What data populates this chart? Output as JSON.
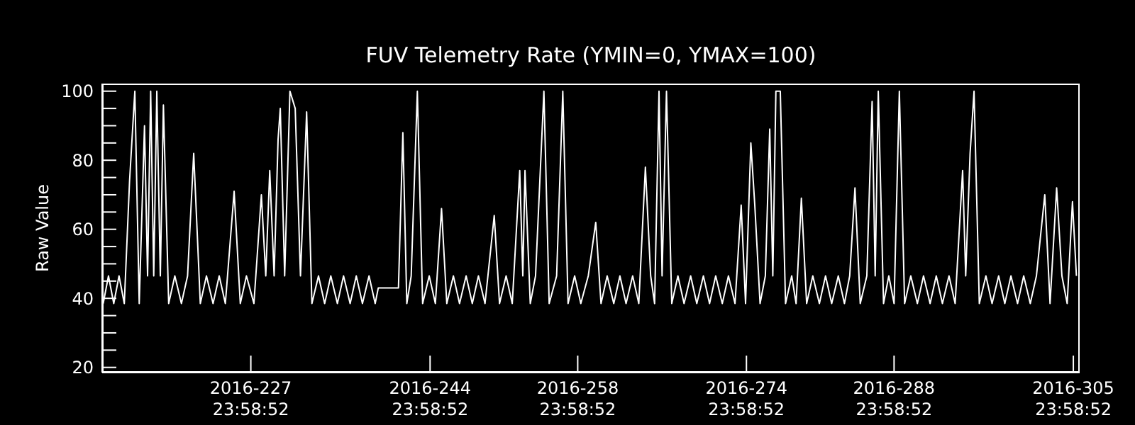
{
  "chart_data": {
    "type": "line",
    "title": "FUV Telemetry Rate (YMIN=0, YMAX=100)",
    "ylabel": "Raw Value",
    "xlim": [
      "2016-07-31T21:36",
      "2016-11-01T14:24"
    ],
    "ylim": [
      18.5,
      102.2
    ],
    "xticks": [
      {
        "value": "2016-08-14T23:59",
        "label": "2016-227\n23:58:52"
      },
      {
        "value": "2016-08-31T23:59",
        "label": "2016-244\n23:58:52"
      },
      {
        "value": "2016-09-14T23:59",
        "label": "2016-258\n23:58:52"
      },
      {
        "value": "2016-09-30T23:59",
        "label": "2016-274\n23:58:52"
      },
      {
        "value": "2016-10-14T23:59",
        "label": "2016-288\n23:58:52"
      },
      {
        "value": "2016-10-31T23:59",
        "label": "2016-305\n23:58:52"
      }
    ],
    "yticks": [
      20,
      {
        "value": 25,
        "label": null
      },
      {
        "value": 30,
        "label": null
      },
      {
        "value": 35,
        "label": null
      },
      40,
      {
        "value": 45,
        "label": null
      },
      {
        "value": 50,
        "label": null
      },
      {
        "value": 55,
        "label": null
      },
      60,
      {
        "value": 65,
        "label": null
      },
      {
        "value": 70,
        "label": null
      },
      {
        "value": 75,
        "label": null
      },
      80,
      {
        "value": 85,
        "label": null
      },
      {
        "value": 90,
        "label": null
      },
      {
        "value": 95,
        "label": null
      },
      100
    ],
    "marker": "none",
    "line_style": "solid",
    "series": [
      {
        "color": "#ffffff",
        "x": [
          "2016-08-01T00:00",
          "2016-08-01T12:00",
          "2016-08-02T00:00",
          "2016-08-02T12:00",
          "2016-08-03T00:00",
          "2016-08-03T12:00",
          "2016-08-04T00:00",
          "2016-08-04T10:00",
          "2016-08-04T22:00",
          "2016-08-05T05:00",
          "2016-08-05T12:00",
          "2016-08-05T19:00",
          "2016-08-06T02:00",
          "2016-08-06T10:00",
          "2016-08-06T17:00",
          "2016-08-07T05:00",
          "2016-08-07T19:00",
          "2016-08-08T10:00",
          "2016-08-09T00:00",
          "2016-08-09T14:00",
          "2016-08-10T05:00",
          "2016-08-10T19:00",
          "2016-08-11T10:00",
          "2016-08-12T00:00",
          "2016-08-12T14:00",
          "2016-08-13T10:00",
          "2016-08-14T00:00",
          "2016-08-14T14:00",
          "2016-08-15T07:00",
          "2016-08-16T00:00",
          "2016-08-16T10:00",
          "2016-08-16T19:00",
          "2016-08-17T05:00",
          "2016-08-17T14:00",
          "2016-08-17T19:00",
          "2016-08-18T05:00",
          "2016-08-18T17:00",
          "2016-08-19T05:00",
          "2016-08-19T17:00",
          "2016-08-20T07:00",
          "2016-08-20T19:00",
          "2016-08-21T10:00",
          "2016-08-22T00:00",
          "2016-08-22T14:00",
          "2016-08-23T05:00",
          "2016-08-23T19:00",
          "2016-08-24T10:00",
          "2016-08-25T00:00",
          "2016-08-25T14:00",
          "2016-08-26T05:00",
          "2016-08-26T19:00",
          "2016-08-27T02:00",
          "2016-08-29T00:00",
          "2016-08-29T10:00",
          "2016-08-29T19:00",
          "2016-08-30T05:00",
          "2016-08-30T19:00",
          "2016-08-31T07:00",
          "2016-08-31T22:00",
          "2016-09-01T12:00",
          "2016-09-02T02:00",
          "2016-09-02T14:00",
          "2016-09-03T05:00",
          "2016-09-03T19:00",
          "2016-09-04T10:00",
          "2016-09-05T00:00",
          "2016-09-05T14:00",
          "2016-09-06T05:00",
          "2016-09-07T02:00",
          "2016-09-07T14:00",
          "2016-09-08T05:00",
          "2016-09-08T19:00",
          "2016-09-09T12:00",
          "2016-09-09T19:00",
          "2016-09-10T00:00",
          "2016-09-10T12:00",
          "2016-09-11T00:00",
          "2016-09-11T19:00",
          "2016-09-12T07:00",
          "2016-09-13T00:00",
          "2016-09-13T14:00",
          "2016-09-14T02:00",
          "2016-09-14T17:00",
          "2016-09-15T07:00",
          "2016-09-16T00:00",
          "2016-09-16T17:00",
          "2016-09-17T05:00",
          "2016-09-17T19:00",
          "2016-09-18T10:00",
          "2016-09-19T00:00",
          "2016-09-19T14:00",
          "2016-09-20T05:00",
          "2016-09-20T19:00",
          "2016-09-21T10:00",
          "2016-09-21T22:00",
          "2016-09-22T07:00",
          "2016-09-22T17:00",
          "2016-09-23T00:00",
          "2016-09-23T10:00",
          "2016-09-23T22:00",
          "2016-09-24T12:00",
          "2016-09-25T02:00",
          "2016-09-25T17:00",
          "2016-09-26T07:00",
          "2016-09-26T22:00",
          "2016-09-27T12:00",
          "2016-09-28T02:00",
          "2016-09-28T17:00",
          "2016-09-29T07:00",
          "2016-09-29T22:00",
          "2016-09-30T12:00",
          "2016-09-30T22:00",
          "2016-10-01T10:00",
          "2016-10-01T19:00",
          "2016-10-02T07:00",
          "2016-10-02T19:00",
          "2016-10-03T05:00",
          "2016-10-03T12:00",
          "2016-10-03T19:00",
          "2016-10-04T05:00",
          "2016-10-04T17:00",
          "2016-10-05T07:00",
          "2016-10-05T17:00",
          "2016-10-06T05:00",
          "2016-10-06T17:00",
          "2016-10-07T07:00",
          "2016-10-07T22:00",
          "2016-10-08T12:00",
          "2016-10-09T02:00",
          "2016-10-09T17:00",
          "2016-10-10T07:00",
          "2016-10-10T19:00",
          "2016-10-11T07:00",
          "2016-10-11T19:00",
          "2016-10-12T10:00",
          "2016-10-12T22:00",
          "2016-10-13T05:00",
          "2016-10-13T12:00",
          "2016-10-14T00:00",
          "2016-10-14T12:00",
          "2016-10-15T00:00",
          "2016-10-15T12:00",
          "2016-10-16T00:00",
          "2016-10-16T14:00",
          "2016-10-17T05:00",
          "2016-10-17T19:00",
          "2016-10-18T10:00",
          "2016-10-19T00:00",
          "2016-10-19T14:00",
          "2016-10-20T05:00",
          "2016-10-20T19:00",
          "2016-10-21T12:00",
          "2016-10-21T19:00",
          "2016-10-22T05:00",
          "2016-10-22T14:00",
          "2016-10-23T02:00",
          "2016-10-23T17:00",
          "2016-10-24T07:00",
          "2016-10-24T22:00",
          "2016-10-25T12:00",
          "2016-10-26T02:00",
          "2016-10-26T17:00",
          "2016-10-27T07:00",
          "2016-10-27T22:00",
          "2016-10-28T12:00",
          "2016-10-29T07:00",
          "2016-10-29T19:00",
          "2016-10-30T10:00",
          "2016-10-30T22:00",
          "2016-10-31T10:00",
          "2016-10-31T22:00",
          "2016-11-01T07:00"
        ],
        "values": [
          38.5,
          46.5,
          38.5,
          46.5,
          38.5,
          74,
          100,
          38.5,
          90,
          46.5,
          100,
          46.5,
          100,
          46.5,
          96,
          38.5,
          46.5,
          38.5,
          46.5,
          82,
          38.5,
          46.5,
          38.5,
          46.5,
          38.5,
          71,
          38.5,
          46.5,
          38.5,
          70,
          46.5,
          77,
          46.5,
          86,
          95,
          46.5,
          100,
          95,
          46.5,
          94,
          38.5,
          46.5,
          38.5,
          46.5,
          38.5,
          46.5,
          38.5,
          46.5,
          38.5,
          46.5,
          38.5,
          43,
          43,
          88,
          38.5,
          46.5,
          100,
          38.5,
          46.5,
          38.5,
          66,
          38.5,
          46.5,
          38.5,
          46.5,
          38.5,
          46.5,
          38.5,
          64,
          38.5,
          46.5,
          38.5,
          77,
          46.5,
          77,
          38.5,
          46.5,
          100,
          38.5,
          46.5,
          100,
          38.5,
          46.5,
          38.5,
          46.5,
          62,
          38.5,
          46.5,
          38.5,
          46.5,
          38.5,
          46.5,
          38.5,
          78,
          46.5,
          38.5,
          100,
          46.5,
          100,
          38.5,
          46.5,
          38.5,
          46.5,
          38.5,
          46.5,
          38.5,
          46.5,
          38.5,
          46.5,
          38.5,
          67,
          38.5,
          85,
          67,
          38.5,
          46.5,
          89,
          46.5,
          100,
          100,
          38.5,
          46.5,
          38.5,
          69,
          38.5,
          46.5,
          38.5,
          46.5,
          38.5,
          46.5,
          38.5,
          46.5,
          72,
          38.5,
          46.5,
          97,
          46.5,
          100,
          38.5,
          46.5,
          38.5,
          100,
          38.5,
          46.5,
          38.5,
          46.5,
          38.5,
          46.5,
          38.5,
          46.5,
          38.5,
          77,
          46.5,
          82,
          100,
          38.5,
          46.5,
          38.5,
          46.5,
          38.5,
          46.5,
          38.5,
          46.5,
          38.5,
          46.5,
          70,
          38.5,
          72,
          46.5,
          38.5,
          68,
          46.5
        ]
      }
    ]
  }
}
